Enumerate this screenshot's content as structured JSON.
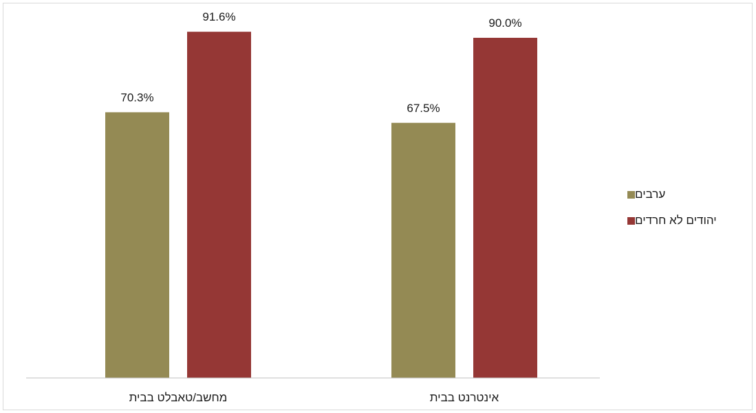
{
  "chart_data": {
    "type": "bar",
    "categories": [
      "מחשב/טאבלט בבית",
      "אינטרנט בבית"
    ],
    "series": [
      {
        "name": "ערבים",
        "values": [
          70.3,
          67.5
        ],
        "color": "#948a54",
        "labels": [
          "70.3%",
          "67.5%"
        ]
      },
      {
        "name": "יהודים לא חרדים",
        "values": [
          91.6,
          90.0
        ],
        "color": "#953735",
        "labels": [
          "91.6%",
          "90.0%"
        ]
      }
    ],
    "title": "",
    "xlabel": "",
    "ylabel": "",
    "ylim": [
      0,
      100
    ],
    "grid": false,
    "legend_position": "right"
  }
}
